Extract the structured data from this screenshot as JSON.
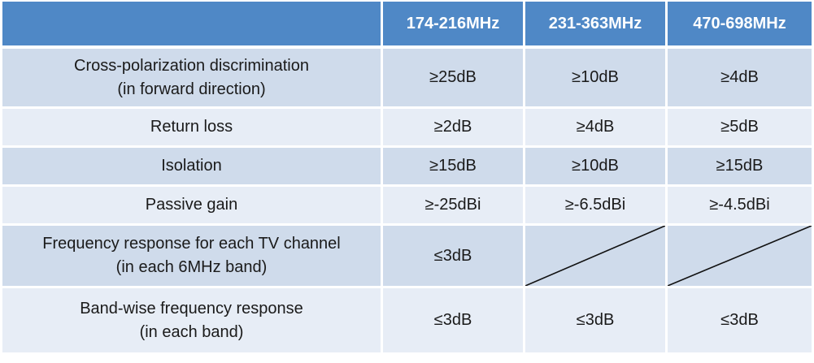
{
  "table": {
    "headers": [
      "",
      "174-216MHz",
      "231-363MHz",
      "470-698MHz"
    ],
    "rows": [
      {
        "param_line1": "Cross-polarization discrimination",
        "param_line2": "(in forward direction)",
        "values": [
          "≥25dB",
          "≥10dB",
          "≥4dB"
        ]
      },
      {
        "param_line1": "Return loss",
        "param_line2": "",
        "values": [
          "≥2dB",
          "≥4dB",
          "≥5dB"
        ]
      },
      {
        "param_line1": "Isolation",
        "param_line2": "",
        "values": [
          "≥15dB",
          "≥10dB",
          "≥15dB"
        ]
      },
      {
        "param_line1": "Passive gain",
        "param_line2": "",
        "values": [
          "≥-25dBi",
          "≥-6.5dBi",
          "≥-4.5dBi"
        ]
      },
      {
        "param_line1": "Frequency response for each TV channel",
        "param_line2": "(in each 6MHz band)",
        "values": [
          "≤3dB",
          "",
          ""
        ]
      },
      {
        "param_line1": "Band-wise frequency response",
        "param_line2": "(in each band)",
        "values": [
          "≤3dB",
          "≤3dB",
          "≤3dB"
        ]
      }
    ],
    "not_applicable_cells": [
      "4.1",
      "4.2"
    ],
    "colors": {
      "header_bg": "#4f88c6",
      "row_dark_bg": "#cfdbeb",
      "row_light_bg": "#e7edf6",
      "header_text": "#ffffff",
      "body_text": "#1a1a1a"
    }
  }
}
